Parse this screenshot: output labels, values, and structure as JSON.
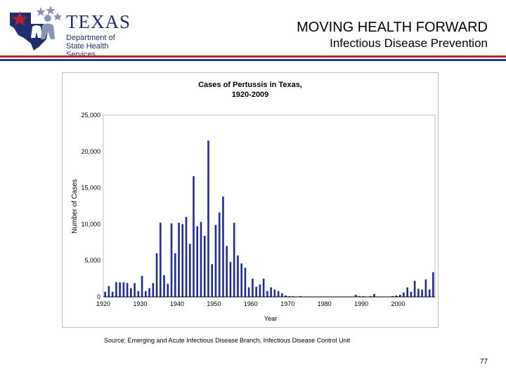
{
  "header": {
    "logo_name": "TEXAS",
    "logo_line1": "Department of",
    "logo_line2": "State Health Services",
    "title": "MOVING HEALTH FORWARD",
    "subtitle": "Infectious Disease Prevention"
  },
  "colors": {
    "bars": "#1f2aa6",
    "red_rule": "#b3232f",
    "blue_rule": "#2b3a7e",
    "logo_blue": "#1e2e6e"
  },
  "icons": {
    "logo": "texas-star-people-logo"
  },
  "footer": {
    "source": "Source: Emerging and Acute Infectious Disease Branch, Infectious Disease Control Unit",
    "page_number": "77"
  },
  "chart_data": {
    "type": "bar",
    "title": "Cases of Pertussis in Texas,",
    "subtitle": "1920-2009",
    "xlabel": "Year",
    "ylabel": "Number of Cases",
    "ylim": [
      0,
      25000
    ],
    "y_ticks": [
      "0",
      "5,000",
      "10,000",
      "15,000",
      "20,000",
      "25,000"
    ],
    "y_tick_values": [
      0,
      5000,
      10000,
      15000,
      20000,
      25000
    ],
    "x_ticks": [
      "1920",
      "1930",
      "1940",
      "1950",
      "1960",
      "1970",
      "1980",
      "1990",
      "2000"
    ],
    "x_tick_values": [
      1920,
      1930,
      1940,
      1950,
      1960,
      1970,
      1980,
      1990,
      2000
    ],
    "xlim": [
      1920,
      2010
    ],
    "grid": false,
    "legend": "none",
    "x": [
      1920,
      1921,
      1922,
      1923,
      1924,
      1925,
      1926,
      1927,
      1928,
      1929,
      1930,
      1931,
      1932,
      1933,
      1934,
      1935,
      1936,
      1937,
      1938,
      1939,
      1940,
      1941,
      1942,
      1943,
      1944,
      1945,
      1946,
      1947,
      1948,
      1949,
      1950,
      1951,
      1952,
      1953,
      1954,
      1955,
      1956,
      1957,
      1958,
      1959,
      1960,
      1961,
      1962,
      1963,
      1964,
      1965,
      1966,
      1967,
      1968,
      1969,
      1970,
      1971,
      1972,
      1973,
      1974,
      1975,
      1976,
      1977,
      1978,
      1979,
      1980,
      1981,
      1982,
      1983,
      1984,
      1985,
      1986,
      1987,
      1988,
      1989,
      1990,
      1991,
      1992,
      1993,
      1994,
      1995,
      1996,
      1997,
      1998,
      1999,
      2000,
      2001,
      2002,
      2003,
      2004,
      2005,
      2006,
      2007,
      2008,
      2009
    ],
    "values": [
      700,
      1500,
      700,
      2000,
      2000,
      2000,
      1900,
      1200,
      1900,
      800,
      2900,
      800,
      1200,
      1900,
      6000,
      10200,
      3000,
      1800,
      10100,
      6000,
      10200,
      10000,
      11000,
      7300,
      16600,
      9700,
      10300,
      8400,
      21500,
      4500,
      9900,
      11600,
      13800,
      7000,
      4800,
      10200,
      5700,
      4600,
      4000,
      1300,
      2500,
      1400,
      1700,
      2500,
      800,
      1300,
      1000,
      800,
      500,
      200,
      100,
      100,
      50,
      100,
      50,
      50,
      50,
      50,
      50,
      50,
      50,
      50,
      50,
      50,
      50,
      50,
      50,
      50,
      300,
      100,
      100,
      50,
      100,
      400,
      50,
      50,
      50,
      50,
      100,
      200,
      300,
      600,
      1300,
      700,
      2200,
      1100,
      1000,
      2400,
      1000,
      3400
    ]
  }
}
